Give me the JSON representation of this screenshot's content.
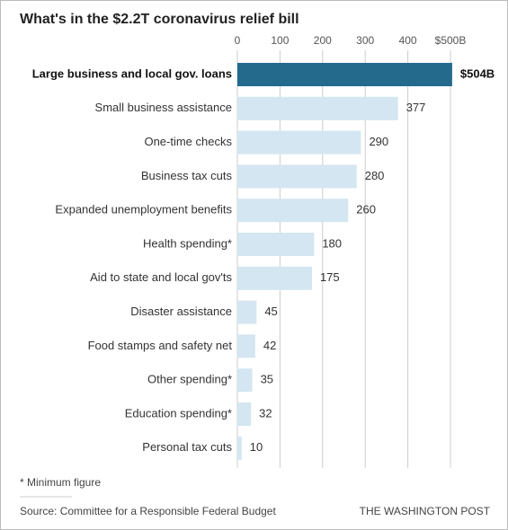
{
  "chart_data": {
    "type": "bar",
    "orientation": "horizontal",
    "title": "What's in the $2.2T coronavirus relief bill",
    "categories": [
      "Large business and local gov. loans",
      "Small business assistance",
      "One-time checks",
      "Business tax cuts",
      "Expanded unemployment benefits",
      "Health spending*",
      "Aid to state and local gov'ts",
      "Disaster assistance",
      "Food stamps and safety net",
      "Other spending*",
      "Education spending*",
      "Personal tax cuts"
    ],
    "values": [
      504,
      377,
      290,
      280,
      260,
      180,
      175,
      45,
      42,
      35,
      32,
      10
    ],
    "value_labels": [
      "$504B",
      "377",
      "290",
      "280",
      "260",
      "180",
      "175",
      "45",
      "42",
      "35",
      "32",
      "10"
    ],
    "colors": [
      "#246a8d",
      "#d4e6f1",
      "#d4e6f1",
      "#d4e6f1",
      "#d4e6f1",
      "#d4e6f1",
      "#d4e6f1",
      "#d4e6f1",
      "#d4e6f1",
      "#d4e6f1",
      "#d4e6f1",
      "#d4e6f1"
    ],
    "xlim": [
      0,
      510
    ],
    "xticks": [
      0,
      100,
      200,
      300,
      400,
      {
        "value": 500,
        "label": "$500B"
      }
    ],
    "grid": true,
    "note": "* Minimum figure",
    "source": "Source: Committee for a Responsible Federal Budget",
    "credit": "THE WASHINGTON POST"
  }
}
